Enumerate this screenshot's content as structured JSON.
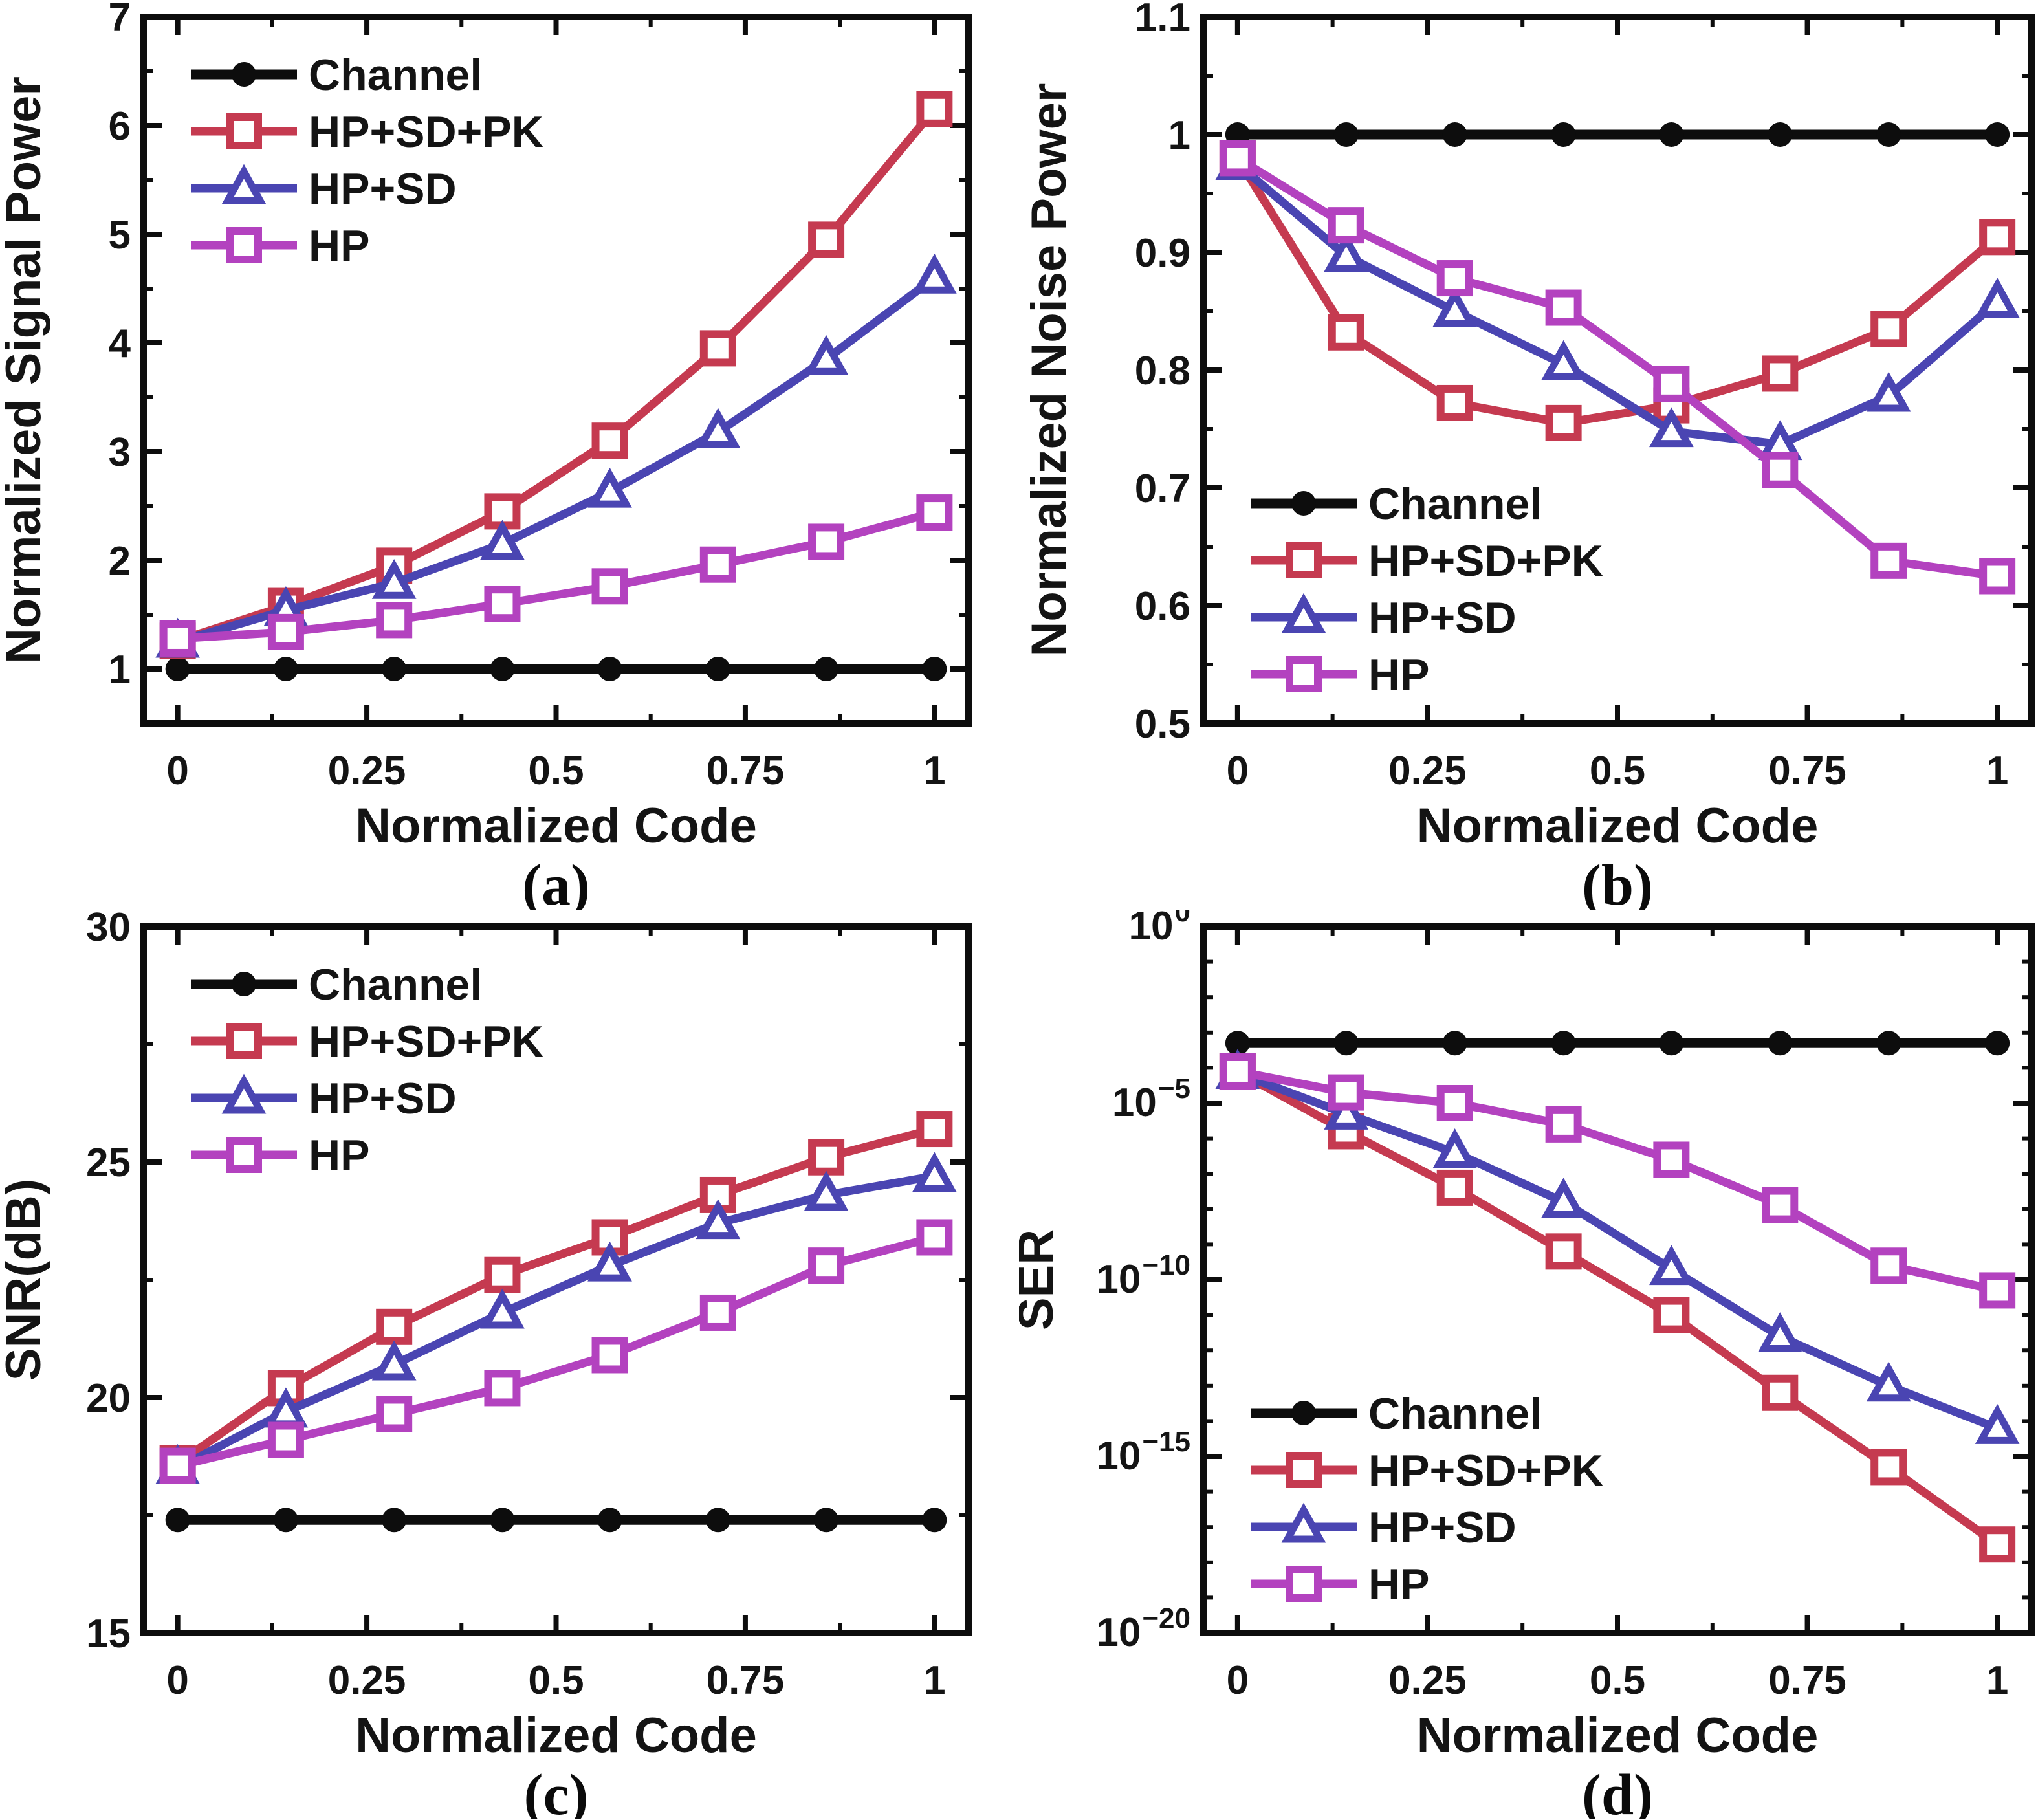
{
  "figure": {
    "background": "#ffffff",
    "x_axis": {
      "label": "Normalized Code",
      "ticks": [
        0,
        0.25,
        0.5,
        0.75,
        1
      ],
      "tick_labels": [
        "0",
        "0.25",
        "0.5",
        "0.75",
        "1"
      ],
      "minor_ticks": [
        0.125,
        0.375,
        0.625,
        0.875
      ],
      "range": [
        -0.045,
        1.045
      ]
    },
    "legend_items": [
      "Channel",
      "HP+SD+PK",
      "HP+SD",
      "HP"
    ],
    "colors": {
      "Channel": "#0d0d0d",
      "HP+SD+PK": "#c53a50",
      "HP+SD": "#4a45b2",
      "HP": "#b342bf"
    },
    "markers": {
      "Channel": "circle-filled",
      "HP+SD+PK": "square-open",
      "HP+SD": "triangle-open",
      "HP": "square-open"
    }
  },
  "chart_data": [
    {
      "id": "a",
      "caption": "(a)",
      "type": "line",
      "xlabel": "Normalized Code",
      "ylabel": "Normalized Signal Power",
      "x": [
        0,
        0.143,
        0.286,
        0.429,
        0.571,
        0.714,
        0.857,
        1
      ],
      "yscale": "linear",
      "ylim": [
        0.5,
        7
      ],
      "yticks": [
        1,
        2,
        3,
        4,
        5,
        6,
        7
      ],
      "ytick_labels": [
        "1",
        "2",
        "3",
        "4",
        "5",
        "6",
        "7"
      ],
      "legend_position": "top-left",
      "grid": false,
      "series": [
        {
          "name": "Channel",
          "values": [
            1.0,
            1.0,
            1.0,
            1.0,
            1.0,
            1.0,
            1.0,
            1.0
          ]
        },
        {
          "name": "HP+SD+PK",
          "values": [
            1.26,
            1.58,
            1.95,
            2.45,
            3.1,
            3.95,
            4.95,
            6.15
          ]
        },
        {
          "name": "HP+SD",
          "values": [
            1.25,
            1.54,
            1.79,
            2.15,
            2.63,
            3.18,
            3.85,
            4.6
          ]
        },
        {
          "name": "HP",
          "values": [
            1.28,
            1.34,
            1.45,
            1.6,
            1.76,
            1.96,
            2.17,
            2.44
          ]
        }
      ]
    },
    {
      "id": "b",
      "caption": "(b)",
      "type": "line",
      "xlabel": "Normalized Code",
      "ylabel": "Normalized Noise Power",
      "x": [
        0,
        0.143,
        0.286,
        0.429,
        0.571,
        0.714,
        0.857,
        1
      ],
      "yscale": "linear",
      "ylim": [
        0.5,
        1.1
      ],
      "yticks": [
        0.5,
        0.6,
        0.7,
        0.8,
        0.9,
        1,
        1.1
      ],
      "ytick_labels": [
        "0.5",
        "0.6",
        "0.7",
        "0.8",
        "0.9",
        "1",
        "1.1"
      ],
      "legend_position": "bottom-left",
      "grid": false,
      "series": [
        {
          "name": "Channel",
          "values": [
            1.0,
            1.0,
            1.0,
            1.0,
            1.0,
            1.0,
            1.0,
            1.0
          ]
        },
        {
          "name": "HP+SD+PK",
          "values": [
            0.98,
            0.832,
            0.772,
            0.755,
            0.77,
            0.797,
            0.835,
            0.913
          ]
        },
        {
          "name": "HP+SD",
          "values": [
            0.975,
            0.897,
            0.85,
            0.805,
            0.748,
            0.737,
            0.778,
            0.858
          ]
        },
        {
          "name": "HP",
          "values": [
            0.98,
            0.923,
            0.878,
            0.853,
            0.788,
            0.715,
            0.638,
            0.625
          ]
        }
      ]
    },
    {
      "id": "c",
      "caption": "(c)",
      "type": "line",
      "xlabel": "Normalized Code",
      "ylabel": "SNR(dB)",
      "x": [
        0,
        0.143,
        0.286,
        0.429,
        0.571,
        0.714,
        0.857,
        1
      ],
      "yscale": "linear",
      "ylim": [
        15,
        30
      ],
      "yticks": [
        15,
        20,
        25,
        30
      ],
      "ytick_labels": [
        "15",
        "20",
        "25",
        "30"
      ],
      "legend_position": "top-left",
      "grid": false,
      "series": [
        {
          "name": "Channel",
          "values": [
            17.4,
            17.4,
            17.4,
            17.4,
            17.4,
            17.4,
            17.4,
            17.4
          ]
        },
        {
          "name": "HP+SD+PK",
          "values": [
            18.6,
            20.2,
            21.5,
            22.6,
            23.4,
            24.3,
            25.1,
            25.7
          ]
        },
        {
          "name": "HP+SD",
          "values": [
            18.5,
            19.7,
            20.7,
            21.8,
            22.8,
            23.7,
            24.3,
            24.7
          ]
        },
        {
          "name": "HP",
          "values": [
            18.55,
            19.1,
            19.65,
            20.2,
            20.9,
            21.8,
            22.8,
            23.4
          ]
        }
      ]
    },
    {
      "id": "d",
      "caption": "(d)",
      "type": "line",
      "xlabel": "Normalized Code",
      "ylabel": "SER",
      "x": [
        0,
        0.143,
        0.286,
        0.429,
        0.571,
        0.714,
        0.857,
        1
      ],
      "yscale": "log",
      "ylim": [
        1e-20,
        1
      ],
      "ytick_exponents": [
        0,
        -5,
        -10,
        -15,
        -20
      ],
      "legend_position": "bottom-left",
      "grid": false,
      "series": [
        {
          "name": "Channel",
          "values": [
            0.0005,
            0.0005,
            0.0005,
            0.0005,
            0.0005,
            0.0005,
            0.0005,
            0.0005
          ]
        },
        {
          "name": "HP+SD+PK",
          "values": [
            7.9e-05,
            1.6e-06,
            4e-08,
            6.3e-10,
            1e-11,
            6.3e-14,
            5e-16,
            3.2e-18
          ]
        },
        {
          "name": "HP+SD",
          "values": [
            7.1e-05,
            5e-06,
            4e-07,
            1.6e-08,
            2e-10,
            2.5e-12,
            1e-13,
            6.3e-15
          ]
        },
        {
          "name": "HP",
          "values": [
            7.9e-05,
            2e-05,
            1e-05,
            2.5e-06,
            2.5e-07,
            1.3e-08,
            2.5e-10,
            5e-11
          ]
        }
      ]
    }
  ]
}
